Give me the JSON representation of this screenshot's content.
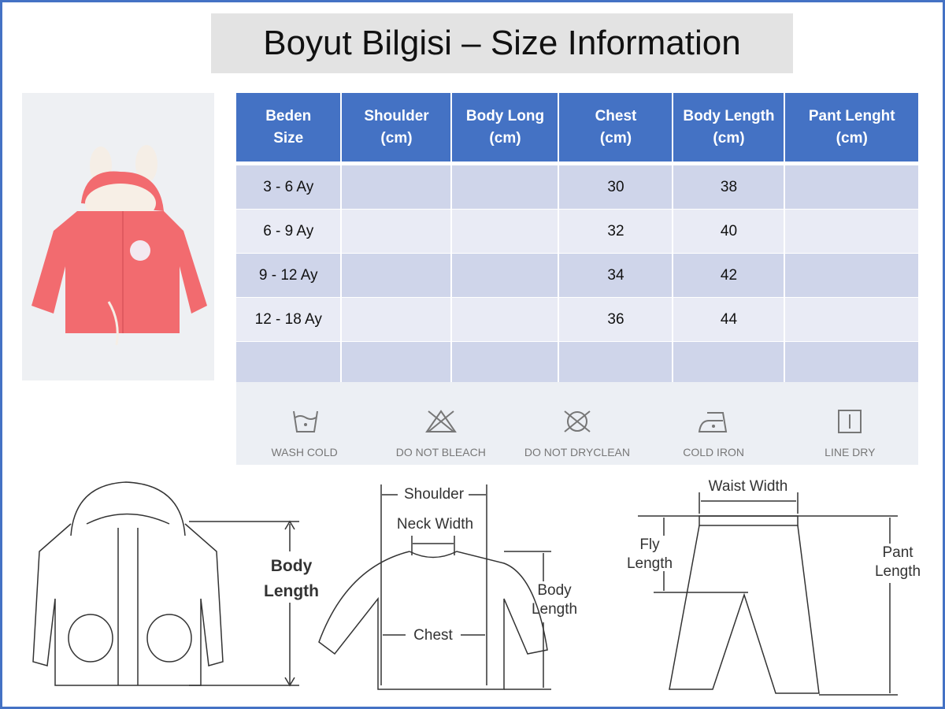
{
  "title": "Boyut Bilgisi – Size Information",
  "table": {
    "headers": [
      [
        "Beden",
        "Size"
      ],
      [
        "Shoulder",
        "(cm)"
      ],
      [
        "Body Long",
        "(cm)"
      ],
      [
        "Chest",
        "(cm)"
      ],
      [
        "Body Length",
        "(cm)"
      ],
      [
        "Pant Lenght",
        "(cm)"
      ]
    ],
    "rows": [
      [
        "3 - 6 Ay",
        "",
        "",
        "30",
        "38",
        ""
      ],
      [
        "6 - 9 Ay",
        "",
        "",
        "32",
        "40",
        ""
      ],
      [
        "9 - 12 Ay",
        "",
        "",
        "34",
        "42",
        ""
      ],
      [
        "12 - 18 Ay",
        "",
        "",
        "36",
        "44",
        ""
      ],
      [
        "",
        "",
        "",
        "",
        "",
        ""
      ]
    ]
  },
  "care": [
    {
      "icon": "wash-cold-icon",
      "label": "WASH COLD"
    },
    {
      "icon": "do-not-bleach-icon",
      "label": "DO NOT BLEACH"
    },
    {
      "icon": "do-not-dryclean-icon",
      "label": "DO NOT DRYCLEAN"
    },
    {
      "icon": "cold-iron-icon",
      "label": "COLD IRON"
    },
    {
      "icon": "line-dry-icon",
      "label": "LINE DRY"
    }
  ],
  "diagrams": {
    "jacket": {
      "body_length": "Body Length"
    },
    "shirt": {
      "shoulder": "Shoulder",
      "neck_width": "Neck Width",
      "body_length": "Body Length",
      "chest": "Chest"
    },
    "pants": {
      "waist_width": "Waist Width",
      "fly_length": "Fly Length",
      "pant_length": "Pant Length"
    }
  },
  "colors": {
    "header": "#4472c4",
    "row_dark": "#cfd5ea",
    "row_light": "#e9ebf5",
    "jacket": "#f26b6f"
  }
}
